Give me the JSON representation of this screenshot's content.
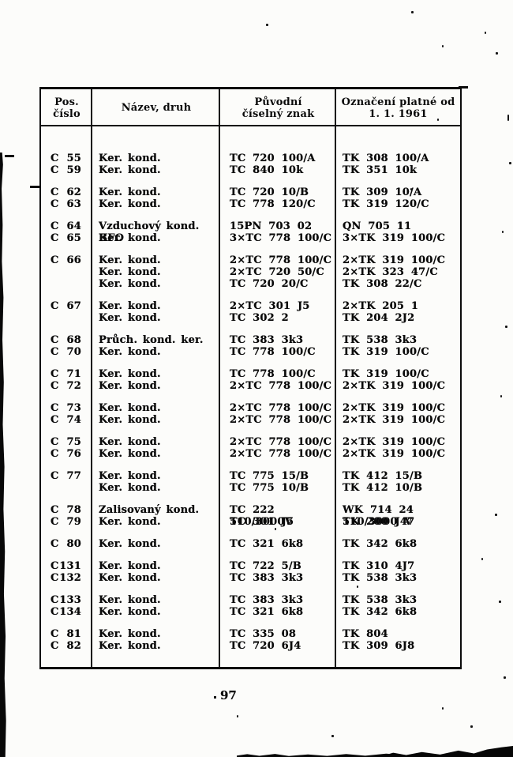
{
  "page": {
    "number": "97"
  },
  "table": {
    "header": {
      "col1_line1": "Pos.",
      "col1_line2": "číslo",
      "col2": "Název, druh",
      "col3_line1": "Původní",
      "col3_line2": "číselný znak",
      "col4_line1": "Označení platné od",
      "col4_line2": "1. 1. 1961"
    },
    "groups": [
      {
        "rows": [
          {
            "pos_letter": "C",
            "pos_number": "55",
            "name": "Ker. kond.",
            "orig": "TC 720 100/A",
            "new": "TK 308 100/A"
          },
          {
            "pos_letter": "C",
            "pos_number": "59",
            "name": "Ker. kond.",
            "orig": "TC 840 10k",
            "new": "TK 351 10k"
          }
        ]
      },
      {
        "rows": [
          {
            "pos_letter": "C",
            "pos_number": "62",
            "name": "Ker. kond.",
            "orig": "TC 720 10/B",
            "new": "TK 309 10/A"
          },
          {
            "pos_letter": "C",
            "pos_number": "63",
            "name": "Ker. kond.",
            "orig": "TC 778 120/C",
            "new": "TK 319 120/C"
          }
        ]
      },
      {
        "rows": [
          {
            "pos_letter": "C",
            "pos_number": "64",
            "name": "Vzduchový kond. BFO",
            "orig": "15PN 703 02",
            "new": "QN 705 11"
          },
          {
            "pos_letter": "C",
            "pos_number": "65",
            "name": "Ker. kond.",
            "orig": "3×TC 778 100/C",
            "new": "3×TK 319 100/C"
          }
        ]
      },
      {
        "rows": [
          {
            "pos_letter": "C",
            "pos_number": "66",
            "name": "Ker. kond.",
            "orig": "2×TC 778 100/C",
            "new": "2×TK 319 100/C"
          },
          {
            "pos_letter": "",
            "pos_number": "",
            "name": "Ker. kond.",
            "orig": "2×TC 720 50/C",
            "new": "2×TK 323 47/C"
          },
          {
            "pos_letter": "",
            "pos_number": "",
            "name": "Ker. kond.",
            "orig": "TC 720 20/C",
            "new": "TK 308 22/C"
          }
        ]
      },
      {
        "rows": [
          {
            "pos_letter": "C",
            "pos_number": "67",
            "name": "Ker. kond.",
            "orig": "2×TC 301 J5",
            "new": "2×TK 205 1"
          },
          {
            "pos_letter": "",
            "pos_number": "",
            "name": "Ker. kond.",
            "orig": "TC 302 2",
            "new": "TK 204 2J2"
          }
        ]
      },
      {
        "rows": [
          {
            "pos_letter": "C",
            "pos_number": "68",
            "name": "Průch. kond. ker.",
            "orig": "TC 383 3k3",
            "new": "TK 538 3k3"
          },
          {
            "pos_letter": "C",
            "pos_number": "70",
            "name": "Ker. kond.",
            "orig": "TC 778 100/C",
            "new": "TK 319 100/C"
          }
        ]
      },
      {
        "rows": [
          {
            "pos_letter": "C",
            "pos_number": "71",
            "name": "Ker. kond.",
            "orig": "TC 778 100/C",
            "new": "TK 319 100/C"
          },
          {
            "pos_letter": "C",
            "pos_number": "72",
            "name": "Ker. kond.",
            "orig": "2×TC 778 100/C",
            "new": "2×TK 319 100/C"
          }
        ]
      },
      {
        "rows": [
          {
            "pos_letter": "C",
            "pos_number": "73",
            "name": "Ker. kond.",
            "orig": "2×TC 778 100/C",
            "new": "2×TK 319 100/C"
          },
          {
            "pos_letter": "C",
            "pos_number": "74",
            "name": "Ker. kond.",
            "orig": "2×TC 778 100/C",
            "new": "2×TK 319 100/C"
          }
        ]
      },
      {
        "rows": [
          {
            "pos_letter": "C",
            "pos_number": "75",
            "name": "Ker. kond.",
            "orig": "2×TC 778 100/C",
            "new": "2×TK 319 100/C"
          },
          {
            "pos_letter": "C",
            "pos_number": "76",
            "name": "Ker. kond.",
            "orig": "2×TC 778 100/C",
            "new": "2×TK 319 100/C"
          }
        ]
      },
      {
        "rows": [
          {
            "pos_letter": "C",
            "pos_number": "77",
            "name": "Ker. kond.",
            "orig": "TC 775 15/B",
            "new": "TK 412 15/B"
          },
          {
            "pos_letter": "",
            "pos_number": "",
            "name": "Ker. kond.",
            "orig": "TC 775 10/B",
            "new": "TK 412 10/B"
          }
        ]
      },
      {
        "rows": [
          {
            "pos_letter": "C",
            "pos_number": "78",
            "name": "Zalisovaný kond.",
            "orig": "TC 222 510/3000V",
            "new": "WK 714 24 510/3000 V"
          },
          {
            "pos_letter": "C",
            "pos_number": "79",
            "name": "Ker. kond.",
            "orig": "TC 301 J5",
            "new": "TK 200 J47"
          }
        ]
      },
      {
        "rows": [
          {
            "pos_letter": "C",
            "pos_number": "80",
            "name": "Ker. kond.",
            "orig": "TC 321 6k8",
            "new": "TK 342 6k8"
          }
        ]
      },
      {
        "rows": [
          {
            "pos_letter": "C",
            "pos_number": "131",
            "name": "Ker. kond.",
            "orig": "TC 722 5/B",
            "new": "TK 310 4J7"
          },
          {
            "pos_letter": "C",
            "pos_number": "132",
            "name": "Ker. kond.",
            "orig": "TC 383 3k3",
            "new": "TK 538 3k3"
          }
        ]
      },
      {
        "rows": [
          {
            "pos_letter": "C",
            "pos_number": "133",
            "name": "Ker. kond.",
            "orig": "TC 383 3k3",
            "new": "TK 538 3k3"
          },
          {
            "pos_letter": "C",
            "pos_number": "134",
            "name": "Ker. kond.",
            "orig": "TC 321 6k8",
            "new": "TK 342 6k8"
          }
        ]
      },
      {
        "rows": [
          {
            "pos_letter": "C",
            "pos_number": "81",
            "name": "Ker. kond.",
            "orig": "TC 335 08",
            "new": "TK 804"
          },
          {
            "pos_letter": "C",
            "pos_number": "82",
            "name": "Ker. kond.",
            "orig": "TC 720 6J4",
            "new": "TK 309 6J8"
          }
        ]
      }
    ]
  }
}
